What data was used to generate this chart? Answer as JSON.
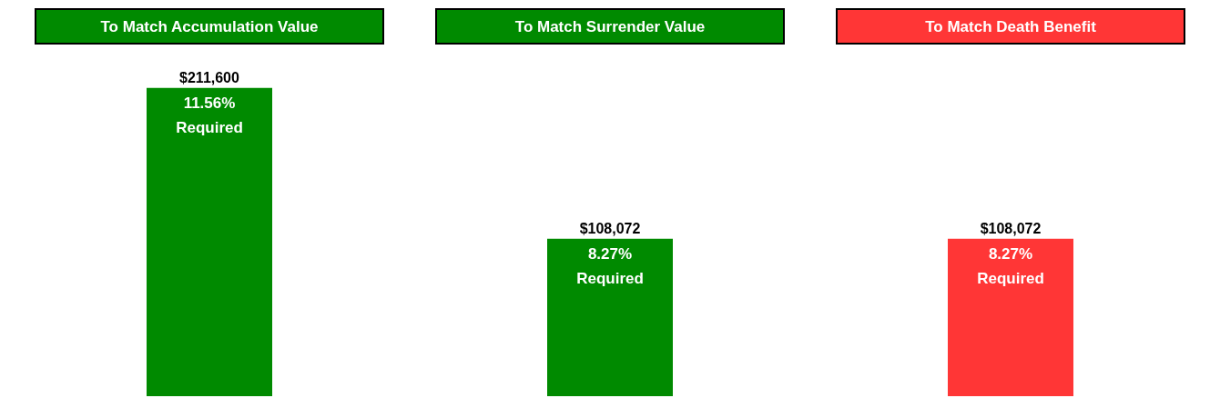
{
  "chart_data": {
    "type": "bar",
    "categories": [
      "To Match Accumulation Value",
      "To Match Surrender Value",
      "To Match Death Benefit"
    ],
    "values": [
      211600,
      108072,
      108072
    ],
    "colors": [
      "#008a00",
      "#008a00",
      "#ff3636"
    ],
    "value_labels": [
      "$211,600",
      "$108,072",
      "$108,072"
    ],
    "annotations": [
      "11.56% Required",
      "8.27% Required",
      "8.27% Required"
    ]
  }
}
